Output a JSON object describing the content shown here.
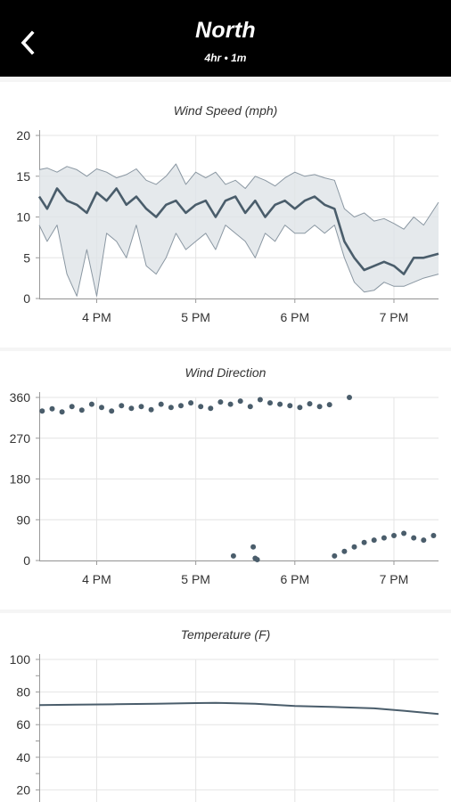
{
  "header": {
    "title": "North",
    "subtitle": "4hr • 1m",
    "back_icon": "chevron-left-icon"
  },
  "colors": {
    "header_bg": "#000000",
    "series": "#4a5d6b",
    "band": "#dfe3e7",
    "band_line": "#8a97a2",
    "grid": "#e4e4e4",
    "axis": "#333333"
  },
  "chart_data": [
    {
      "type": "line",
      "title": "Wind Speed (mph)",
      "xlabel": "",
      "ylabel": "",
      "xlim": [
        15.42,
        19.45
      ],
      "ylim": [
        0,
        20
      ],
      "yticks": [
        0,
        5,
        10,
        15,
        20
      ],
      "xticks": [
        {
          "value": 16,
          "label": "4 PM"
        },
        {
          "value": 17,
          "label": "5 PM"
        },
        {
          "value": 18,
          "label": "6 PM"
        },
        {
          "value": 19,
          "label": "7 PM"
        }
      ],
      "grid": true,
      "series": [
        {
          "role": "gust_max",
          "x": [
            15.42,
            15.5,
            15.6,
            15.7,
            15.8,
            15.9,
            16.0,
            16.1,
            16.2,
            16.3,
            16.4,
            16.5,
            16.6,
            16.7,
            16.8,
            16.9,
            17.0,
            17.1,
            17.2,
            17.3,
            17.4,
            17.5,
            17.6,
            17.7,
            17.8,
            17.9,
            18.0,
            18.1,
            18.2,
            18.3,
            18.4,
            18.5,
            18.6,
            18.7,
            18.8,
            18.9,
            19.0,
            19.1,
            19.2,
            19.3,
            19.45
          ],
          "values": [
            15.8,
            16,
            15.5,
            16.2,
            15.8,
            15,
            15.9,
            15.5,
            14.8,
            15.2,
            15.9,
            14.5,
            14,
            15,
            16.5,
            14,
            15.5,
            14.8,
            15.5,
            14,
            14.5,
            13.5,
            15,
            14.5,
            13.8,
            14.8,
            15.5,
            15,
            15.2,
            14.8,
            14.5,
            11,
            10,
            10.5,
            9.5,
            9.8,
            9.2,
            8.5,
            10,
            9,
            11.8
          ]
        },
        {
          "role": "average",
          "x": [
            15.42,
            15.5,
            15.6,
            15.7,
            15.8,
            15.9,
            16.0,
            16.1,
            16.2,
            16.3,
            16.4,
            16.5,
            16.6,
            16.7,
            16.8,
            16.9,
            17.0,
            17.1,
            17.2,
            17.3,
            17.4,
            17.5,
            17.6,
            17.7,
            17.8,
            17.9,
            18.0,
            18.1,
            18.2,
            18.3,
            18.4,
            18.5,
            18.6,
            18.7,
            18.8,
            18.9,
            19.0,
            19.1,
            19.2,
            19.3,
            19.45
          ],
          "values": [
            12.5,
            11,
            13.5,
            12,
            11.5,
            10.5,
            13,
            12,
            13.5,
            11.5,
            12.5,
            11,
            10,
            11.5,
            12,
            10.5,
            11.5,
            12,
            10,
            12,
            12.5,
            10.5,
            12,
            10,
            11.5,
            12,
            11,
            12,
            12.5,
            11.5,
            11,
            7,
            5,
            3.5,
            4,
            4.5,
            4,
            3,
            5,
            5,
            5.5
          ]
        },
        {
          "role": "lull_min",
          "x": [
            15.42,
            15.5,
            15.6,
            15.7,
            15.8,
            15.9,
            16.0,
            16.1,
            16.2,
            16.3,
            16.4,
            16.5,
            16.6,
            16.7,
            16.8,
            16.9,
            17.0,
            17.1,
            17.2,
            17.3,
            17.4,
            17.5,
            17.6,
            17.7,
            17.8,
            17.9,
            18.0,
            18.1,
            18.2,
            18.3,
            18.4,
            18.5,
            18.6,
            18.7,
            18.8,
            18.9,
            19.0,
            19.1,
            19.2,
            19.3,
            19.45
          ],
          "values": [
            9,
            7,
            9,
            3,
            0.3,
            6,
            0.3,
            8,
            7,
            5,
            9,
            4,
            3,
            5,
            8,
            6,
            7,
            8,
            6,
            9,
            8,
            7,
            5,
            8,
            7,
            9,
            8,
            8,
            9,
            8,
            9,
            5,
            2,
            0.8,
            1,
            2,
            1.5,
            1.5,
            2,
            2.5,
            3
          ]
        }
      ]
    },
    {
      "type": "scatter",
      "title": "Wind Direction",
      "xlabel": "",
      "ylabel": "",
      "xlim": [
        15.42,
        19.45
      ],
      "ylim": [
        0,
        360
      ],
      "yticks": [
        0,
        90,
        180,
        270,
        360
      ],
      "xticks": [
        {
          "value": 16,
          "label": "4 PM"
        },
        {
          "value": 17,
          "label": "5 PM"
        },
        {
          "value": 18,
          "label": "6 PM"
        },
        {
          "value": 19,
          "label": "7 PM"
        }
      ],
      "grid": true,
      "series": [
        {
          "name": "",
          "x": [
            15.45,
            15.55,
            15.65,
            15.75,
            15.85,
            15.95,
            16.05,
            16.15,
            16.25,
            16.35,
            16.45,
            16.55,
            16.65,
            16.75,
            16.85,
            16.95,
            17.05,
            17.15,
            17.25,
            17.35,
            17.45,
            17.55,
            17.65,
            17.75,
            17.85,
            17.95,
            18.05,
            18.15,
            18.25,
            18.35,
            18.55,
            17.38,
            17.58,
            17.6,
            17.62,
            18.4,
            18.5,
            18.6,
            18.7,
            18.8,
            18.9,
            19.0,
            19.1,
            19.2,
            19.3,
            19.4
          ],
          "values": [
            330,
            335,
            328,
            340,
            332,
            345,
            338,
            330,
            342,
            336,
            340,
            333,
            345,
            338,
            342,
            348,
            340,
            336,
            350,
            345,
            352,
            340,
            355,
            348,
            345,
            342,
            338,
            346,
            340,
            344,
            360,
            10,
            30,
            5,
            2,
            10,
            20,
            30,
            40,
            45,
            50,
            55,
            60,
            50,
            45,
            55
          ]
        }
      ]
    },
    {
      "type": "line",
      "title": "Temperature (F)",
      "xlabel": "",
      "ylabel": "",
      "xlim": [
        15.42,
        19.45
      ],
      "ylim": [
        0,
        100
      ],
      "yticks": [
        20,
        40,
        60,
        80,
        100
      ],
      "xticks": [],
      "grid": true,
      "series": [
        {
          "name": "",
          "x": [
            15.42,
            15.8,
            16.2,
            16.6,
            17.0,
            17.2,
            17.6,
            18.0,
            18.4,
            18.8,
            19.1,
            19.45
          ],
          "values": [
            72,
            72.3,
            72.5,
            72.8,
            73.2,
            73.4,
            72.8,
            71.5,
            70.8,
            70,
            68.5,
            66.5
          ]
        }
      ]
    }
  ]
}
